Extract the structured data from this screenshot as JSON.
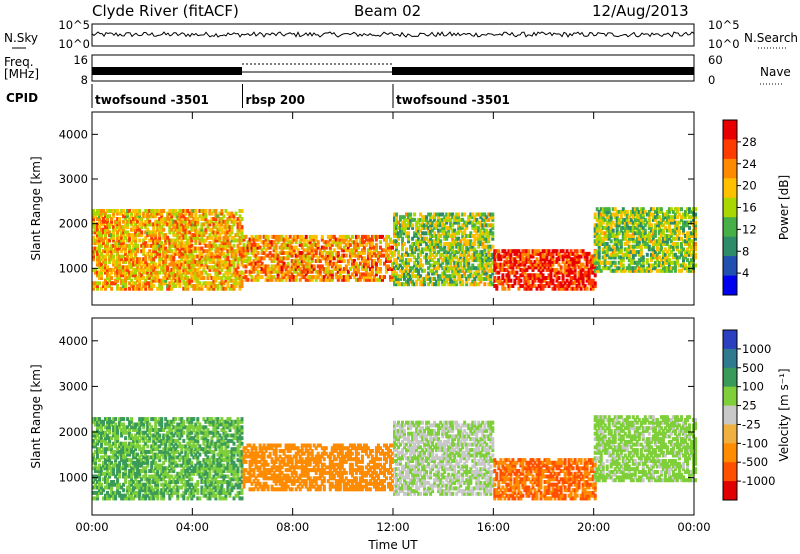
{
  "header": {
    "station": "Clyde River (fitACF)",
    "beam": "Beam 02",
    "date": "12/Aug/2013"
  },
  "strip_panels": {
    "nsky_label": "N.Sky",
    "nsearch_label": "N.Search",
    "freq_label_1": "Freq.",
    "freq_label_2": "[MHz]",
    "nave_label": "Nave",
    "cpid_label": "CPID",
    "noise_left_ticks": [
      "10^5",
      "10^0"
    ],
    "noise_right_ticks": [
      "10^5",
      "10^0"
    ],
    "freq_ticks": [
      "16",
      "8"
    ],
    "nave_ticks": [
      "60",
      "0"
    ]
  },
  "cpid_segments": [
    {
      "name": "twofsound -3501",
      "start_hr": 0,
      "end_hr": 6
    },
    {
      "name": "rbsp 200",
      "start_hr": 6,
      "end_hr": 12
    },
    {
      "name": "twofsound -3501",
      "start_hr": 12,
      "end_hr": 24
    }
  ],
  "colorbars": [
    {
      "title": "Power [dB]",
      "tick_labels": [
        "28",
        "24",
        "20",
        "16",
        "12",
        "8",
        "4"
      ],
      "colors": [
        "#e80000",
        "#ff3c00",
        "#ff8a00",
        "#ffc000",
        "#a8d800",
        "#46b046",
        "#2e8b6a",
        "#2050b0",
        "#0000f0"
      ]
    },
    {
      "title": "Velocity [m s⁻¹]",
      "tick_labels": [
        "1000",
        "500",
        "100",
        "25",
        "-25",
        "-100",
        "-500",
        "-1000"
      ],
      "colors": [
        "#2a40c0",
        "#2f7a8f",
        "#3a9a5a",
        "#7fcf3a",
        "#c8c8c8",
        "#f0b040",
        "#ff8c00",
        "#ff5000",
        "#e00000"
      ]
    }
  ],
  "chart_data": [
    {
      "type": "heatmap",
      "title": "",
      "quantity": "Power",
      "xlabel": "",
      "ylabel": "Slant Range [km]",
      "xlim": [
        0,
        24
      ],
      "ylim": [
        180,
        4500
      ],
      "x_tick_labels": [
        "00:00",
        "04:00",
        "08:00",
        "12:00",
        "16:00",
        "20:00",
        "00:00"
      ],
      "y_tick_labels": [
        "4000",
        "3000",
        "2000",
        "1000"
      ],
      "y_ticks": [
        4000,
        3000,
        2000,
        1000
      ],
      "scatter_bands": [
        {
          "start_hr": 0,
          "end_hr": 6,
          "range_min": 500,
          "range_max": 2300,
          "typical_power_db": 20
        },
        {
          "start_hr": 6,
          "end_hr": 12,
          "range_min": 700,
          "range_max": 1700,
          "typical_power_db": 22
        },
        {
          "start_hr": 12,
          "end_hr": 16,
          "range_min": 600,
          "range_max": 2200,
          "typical_power_db": 14
        },
        {
          "start_hr": 16,
          "end_hr": 20,
          "range_min": 500,
          "range_max": 1400,
          "typical_power_db": 28
        },
        {
          "start_hr": 20,
          "end_hr": 24,
          "range_min": 900,
          "range_max": 2300,
          "typical_power_db": 14
        }
      ]
    },
    {
      "type": "heatmap",
      "title": "",
      "quantity": "Velocity",
      "xlabel": "Time UT",
      "ylabel": "Slant Range [km]",
      "xlim": [
        0,
        24
      ],
      "ylim": [
        180,
        4500
      ],
      "x_tick_labels": [
        "00:00",
        "04:00",
        "08:00",
        "12:00",
        "16:00",
        "20:00",
        "00:00"
      ],
      "y_tick_labels": [
        "4000",
        "3000",
        "2000",
        "1000"
      ],
      "y_ticks": [
        4000,
        3000,
        2000,
        1000
      ],
      "scatter_bands": [
        {
          "start_hr": 0,
          "end_hr": 6,
          "range_min": 500,
          "range_max": 2300,
          "typical_velocity_ms": 100
        },
        {
          "start_hr": 6,
          "end_hr": 12,
          "range_min": 700,
          "range_max": 1700,
          "typical_velocity_ms": -300
        },
        {
          "start_hr": 12,
          "end_hr": 16,
          "range_min": 600,
          "range_max": 2200,
          "typical_velocity_ms": 20
        },
        {
          "start_hr": 16,
          "end_hr": 20,
          "range_min": 500,
          "range_max": 1400,
          "typical_velocity_ms": -500
        },
        {
          "start_hr": 20,
          "end_hr": 24,
          "range_min": 900,
          "range_max": 2300,
          "typical_velocity_ms": 50
        }
      ]
    }
  ]
}
